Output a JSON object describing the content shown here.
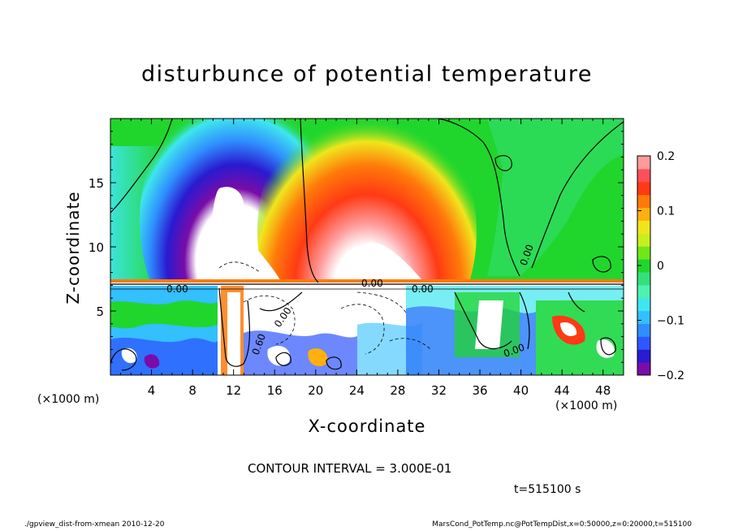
{
  "chart_data": {
    "type": "heatmap",
    "title": "disturbunce of potential temperature",
    "xlabel": "X-coordinate",
    "ylabel": "Z-coordinate",
    "x_unit": "(×1000 m)",
    "xlim": [
      0,
      50
    ],
    "ylim": [
      0,
      20
    ],
    "x_ticks": [
      4,
      8,
      12,
      16,
      20,
      24,
      28,
      32,
      36,
      40,
      44,
      48
    ],
    "y_ticks": [
      5,
      10,
      15
    ],
    "colorbar": {
      "range": [
        -0.2,
        0.2
      ],
      "ticks": [
        "0.2",
        "0.1",
        "0",
        "−0.1",
        "−0.2"
      ],
      "colors": [
        "#7a0ca8",
        "#2a1ad0",
        "#2f56ff",
        "#2f8fff",
        "#34bfff",
        "#3fe6ee",
        "#4ff0b0",
        "#34e07a",
        "#20d62c",
        "#6ee81a",
        "#c7ee1e",
        "#f0e51c",
        "#ffb00f",
        "#ff7a0a",
        "#ff3a14",
        "#ff4f5a",
        "#ff9a9a"
      ]
    },
    "contour_labels": [
      "0.00",
      "0.00",
      "0.00",
      "0.60",
      "0.00",
      "0.00",
      "0.00"
    ],
    "contour_interval": "CONTOUR INTERVAL = 3.000E-01",
    "time": "t=515100 s"
  },
  "footer": {
    "left": "./gpview_dist-from-xmean   2010-12-20",
    "right": "MarsCond_PotTemp.nc@PotTempDist,x=0:50000,z=0:20000,t=515100"
  }
}
